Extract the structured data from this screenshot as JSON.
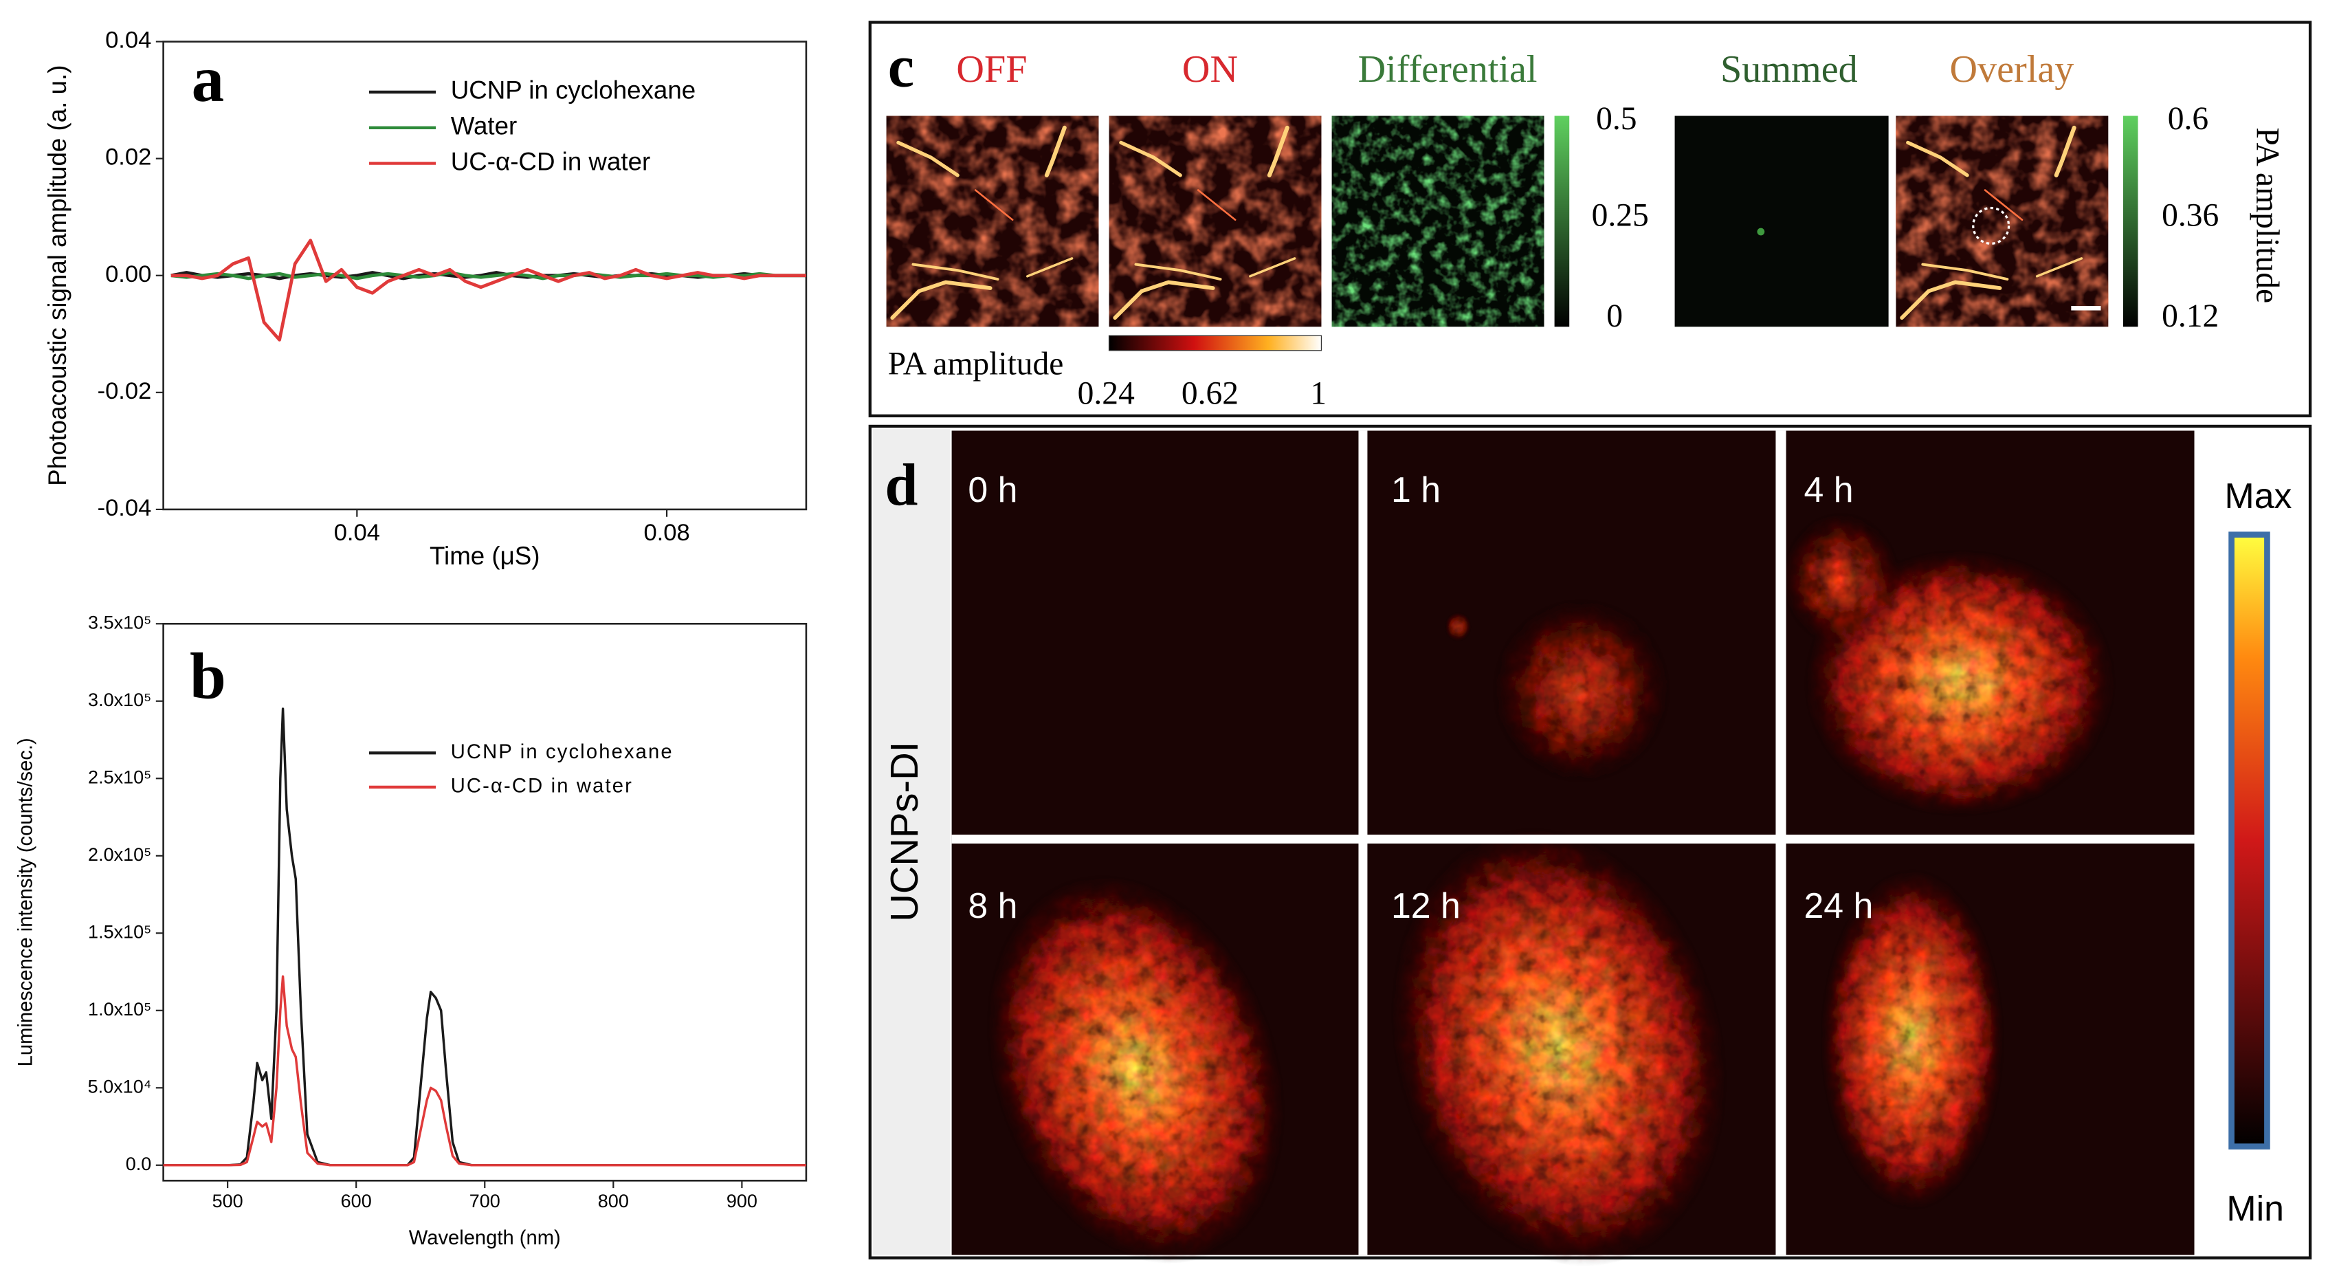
{
  "chart_data": [
    {
      "type": "line",
      "label": "a",
      "xlabel": "Time (μS)",
      "ylabel": "Photoacoustic signal amplitude (a. u.)",
      "xlim": [
        0.015,
        0.098
      ],
      "xticks": [
        0.04,
        0.08
      ],
      "ylim": [
        -0.04,
        0.04
      ],
      "yticks": [
        -0.04,
        -0.02,
        {
          "value": 0,
          "label": "0.00"
        },
        0.02,
        0.04
      ],
      "legend": "upper right",
      "x": [
        0.016,
        0.018,
        0.02,
        0.022,
        0.024,
        0.026,
        0.028,
        0.03,
        0.032,
        0.034,
        0.036,
        0.038,
        0.04,
        0.042,
        0.044,
        0.046,
        0.048,
        0.05,
        0.052,
        0.054,
        0.056,
        0.058,
        0.06,
        0.062,
        0.064,
        0.066,
        0.068,
        0.07,
        0.072,
        0.074,
        0.076,
        0.078,
        0.08,
        0.082,
        0.084,
        0.086,
        0.088,
        0.09,
        0.092,
        0.094,
        0.096,
        0.098
      ],
      "series": [
        {
          "name": "UCNP in cyclohexane",
          "color": "#1a1a1a",
          "values": [
            0,
            0.0005,
            0,
            -0.0003,
            0,
            0.0003,
            0,
            -0.0005,
            0,
            0.0003,
            0,
            -0.0003,
            0,
            0.0005,
            0,
            -0.0005,
            0,
            0.0003,
            0,
            -0.0003,
            0,
            0.0005,
            0,
            -0.0003,
            0,
            0,
            0.0003,
            0,
            -0.0003,
            0,
            0,
            0.0003,
            0,
            0,
            -0.0003,
            0,
            0,
            0.0003,
            0,
            0,
            0,
            0
          ]
        },
        {
          "name": "Water",
          "color": "#2e8b3a",
          "values": [
            0,
            -0.0003,
            0,
            0.0003,
            0,
            -0.0005,
            0,
            0.0003,
            -0.0003,
            0,
            0.0003,
            0,
            -0.0005,
            0,
            0.0003,
            0,
            -0.0003,
            0,
            0.0005,
            0,
            -0.0003,
            0,
            0.0003,
            0,
            -0.0005,
            0,
            0,
            0.0003,
            0,
            -0.0003,
            0,
            0,
            0.0003,
            0,
            0,
            -0.0003,
            0,
            0,
            0.0003,
            0,
            0,
            0
          ]
        },
        {
          "name": "UC-α-CD in water",
          "color": "#e03a3a",
          "values": [
            0,
            0,
            -0.0005,
            0,
            0.002,
            0.003,
            -0.008,
            -0.011,
            0.002,
            0.006,
            -0.001,
            0.001,
            -0.002,
            -0.003,
            -0.001,
            0,
            0.001,
            0,
            0.001,
            -0.001,
            -0.002,
            -0.001,
            0,
            0.001,
            0,
            -0.001,
            0,
            0.0005,
            -0.0005,
            0,
            0.001,
            0,
            -0.0005,
            0,
            0.0005,
            0,
            0,
            -0.0005,
            0,
            0,
            0,
            0
          ]
        }
      ]
    },
    {
      "type": "line",
      "label": "b",
      "xlabel": "Wavelength (nm)",
      "ylabel": "Luminescence intensity (counts/sec.)",
      "xlim": [
        450,
        950
      ],
      "xticks": [
        500,
        600,
        700,
        800,
        900
      ],
      "ylim": [
        -10000,
        350000
      ],
      "yticks": [
        {
          "value": 0,
          "label": "0.0"
        },
        {
          "value": 50000,
          "label": "5.0x10⁴"
        },
        {
          "value": 100000,
          "label": "1.0x10⁵"
        },
        {
          "value": 150000,
          "label": "1.5x10⁵"
        },
        {
          "value": 200000,
          "label": "2.0x10⁵"
        },
        {
          "value": 250000,
          "label": "2.5x10⁵"
        },
        {
          "value": 300000,
          "label": "3.0x10⁵"
        },
        {
          "value": 350000,
          "label": "3.5x10⁵"
        }
      ],
      "legend": "upper right",
      "x": [
        450,
        500,
        510,
        515,
        520,
        523,
        527,
        530,
        534,
        538,
        541,
        543,
        546,
        550,
        553,
        557,
        562,
        570,
        580,
        640,
        645,
        650,
        655,
        658,
        662,
        666,
        670,
        675,
        680,
        690,
        950
      ],
      "series": [
        {
          "name": "UCNP in cyclohexane",
          "color": "#1a1a1a",
          "values": [
            0,
            0,
            500,
            5000,
            40000,
            66000,
            55000,
            60000,
            30000,
            100000,
            250000,
            295000,
            230000,
            200000,
            185000,
            100000,
            20000,
            2000,
            0,
            0,
            5000,
            50000,
            95000,
            112000,
            108000,
            100000,
            60000,
            15000,
            2000,
            0,
            0
          ]
        },
        {
          "name": "UC-α-CD in water",
          "color": "#e03a3a",
          "values": [
            0,
            0,
            200,
            2000,
            18000,
            28000,
            25000,
            27000,
            15000,
            50000,
            100000,
            122000,
            90000,
            75000,
            70000,
            40000,
            8000,
            1000,
            0,
            0,
            2000,
            22000,
            42000,
            50000,
            48000,
            42000,
            25000,
            6000,
            1000,
            0,
            0
          ]
        }
      ]
    }
  ],
  "panel_c": {
    "label": "c",
    "titles": [
      "OFF",
      "ON",
      "Differential",
      "Summed",
      "Overlay"
    ],
    "colorbar_green_1": [
      "0.5",
      "0.25",
      "0"
    ],
    "colorbar_green_2": [
      "0.6",
      "0.36",
      "0.12"
    ],
    "colorbar_green_2_title": "PA amplitude",
    "colorbar_red_title": "PA amplitude",
    "colorbar_red": [
      "0.24",
      "0.62",
      "1"
    ]
  },
  "panel_d": {
    "label": "d",
    "row_label": "UCNPs-DI",
    "times": [
      "0 h",
      "1 h",
      "4 h",
      "8 h",
      "12 h",
      "24 h"
    ],
    "colorbar_max": "Max",
    "colorbar_min": "Min"
  }
}
